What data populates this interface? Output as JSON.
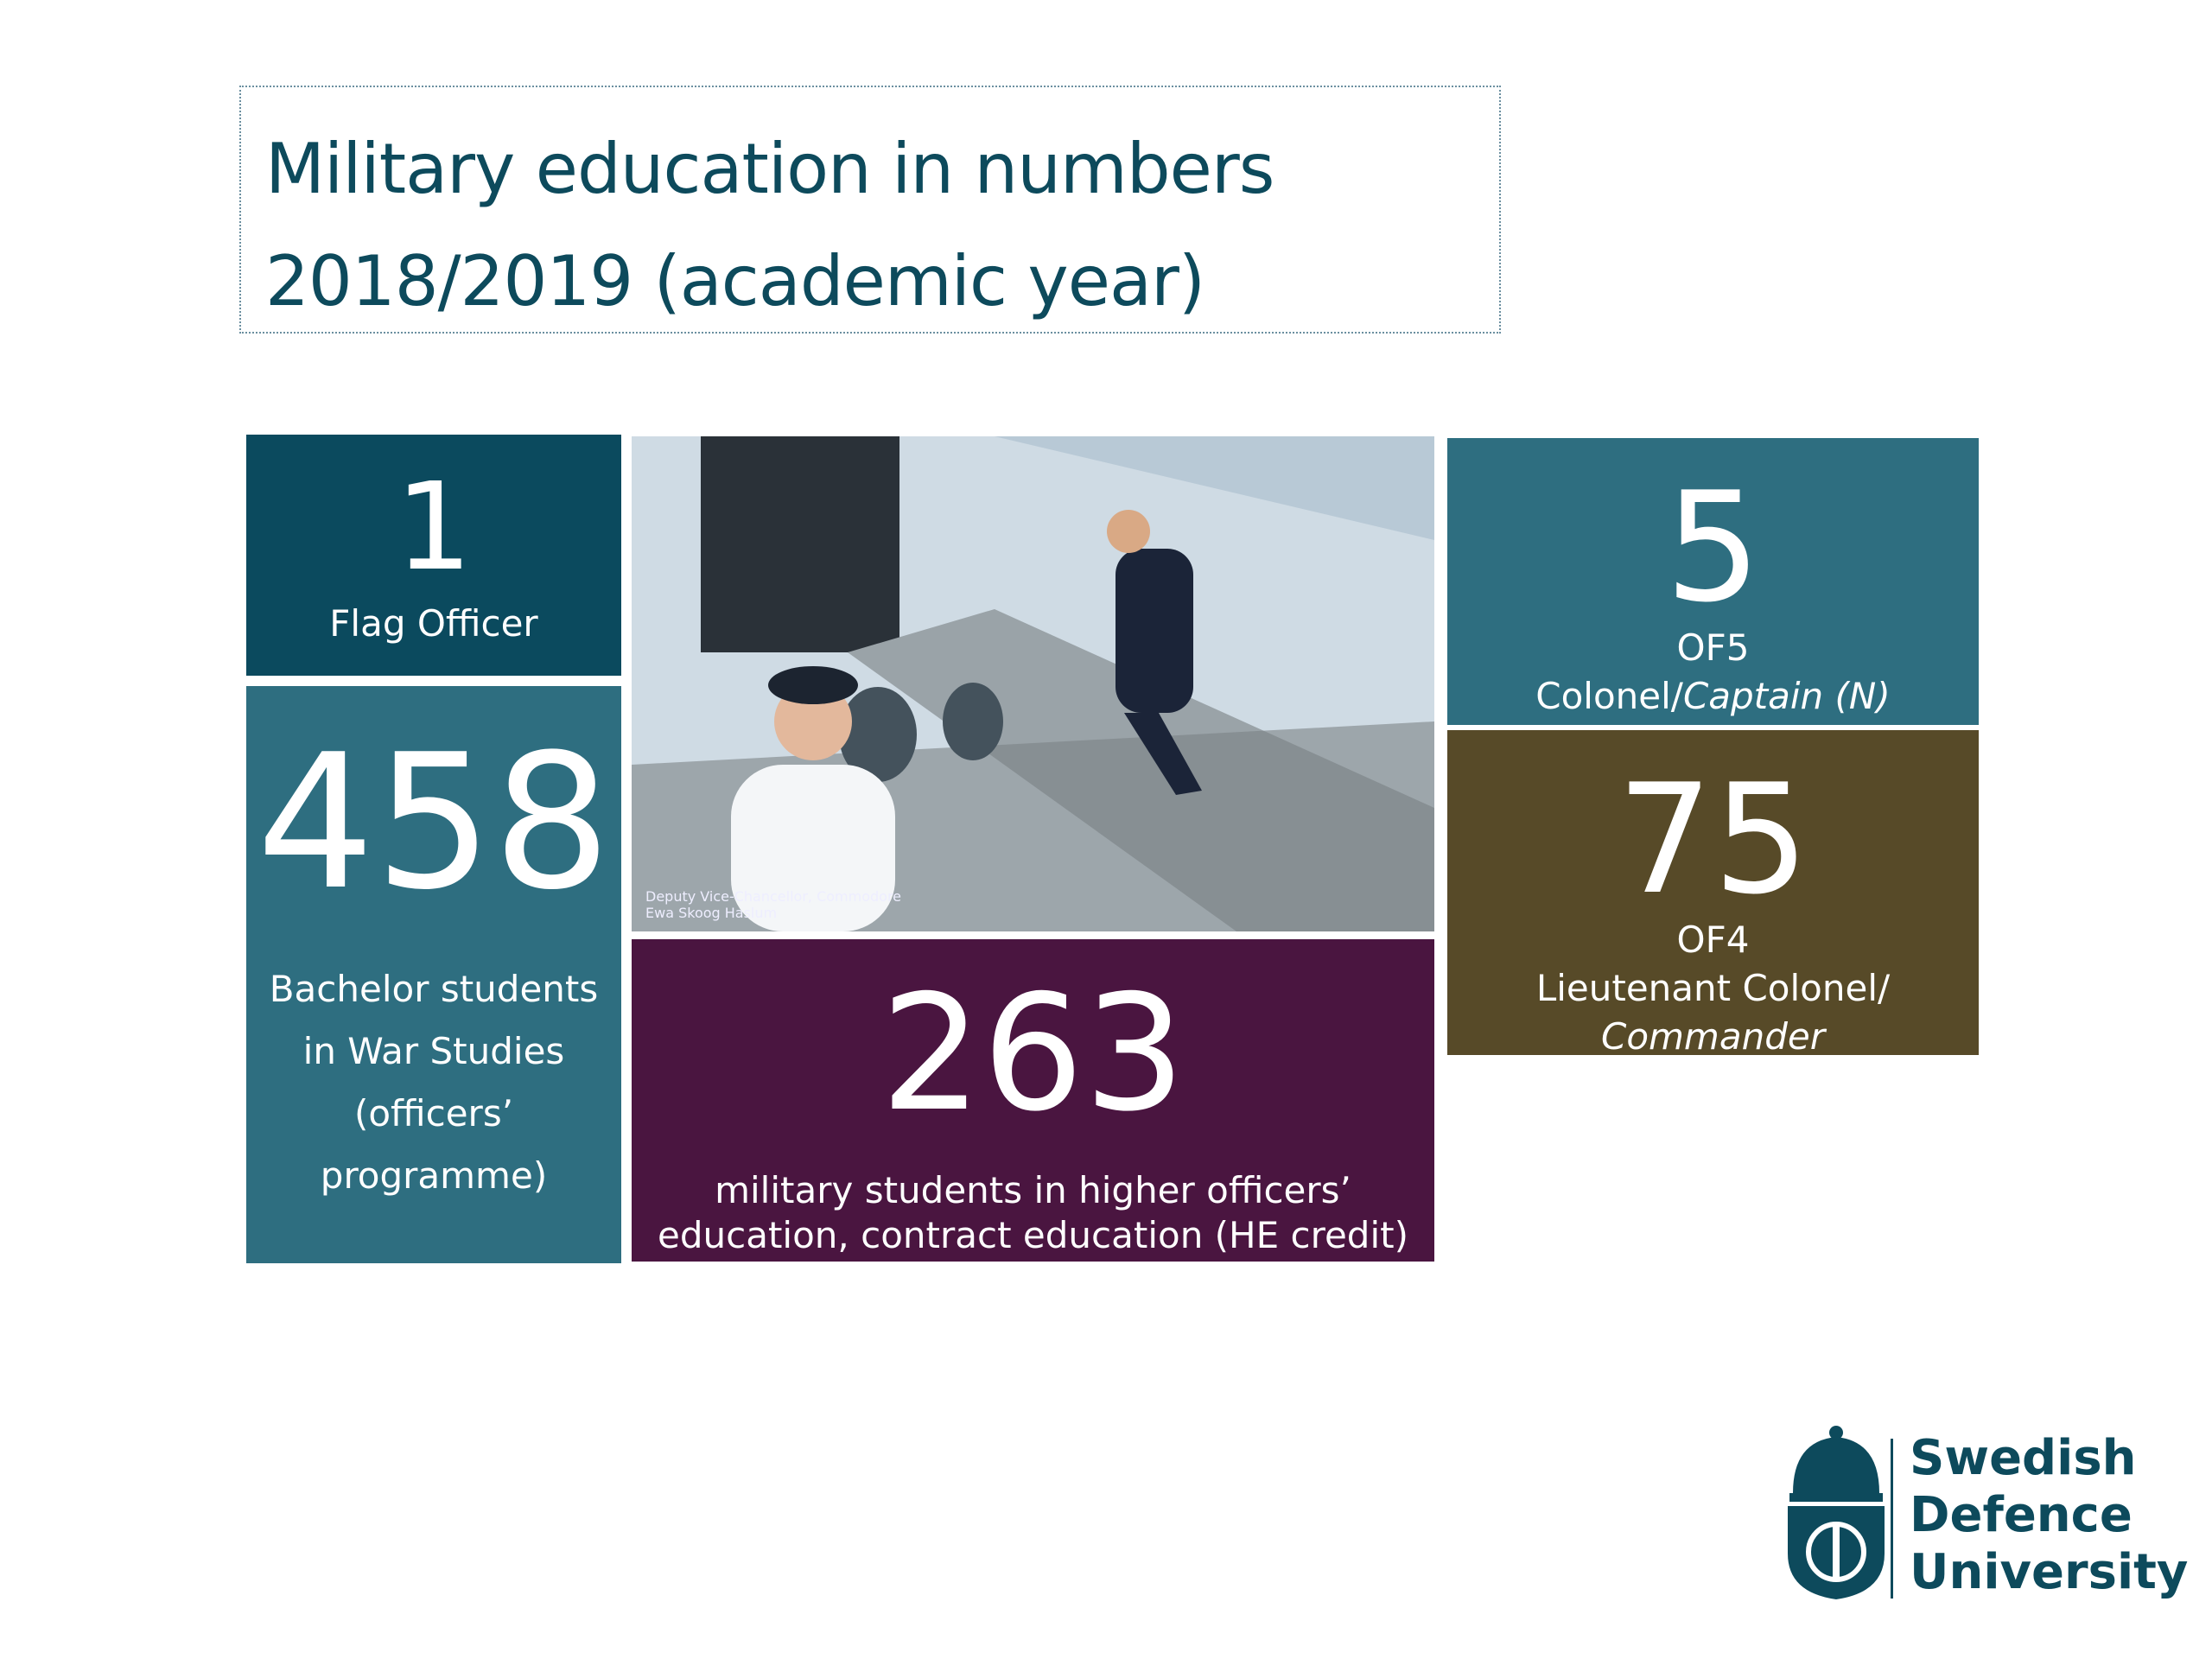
{
  "header": {
    "title_lines": [
      "Military education in numbers",
      "2018/2019 (academic year)"
    ]
  },
  "tiles": [
    {
      "value": 1,
      "lines": [
        "Flag Officer"
      ]
    },
    {
      "value": 458,
      "lines": [
        "Bachelor students",
        "in War Studies",
        "(officers’",
        "programme)"
      ]
    },
    {
      "value": 263,
      "lines": [
        "military students in higher officers’",
        "education, contract education (HE credit)"
      ]
    },
    {
      "value": 5,
      "rank": "OF5",
      "title": "Colonel/",
      "title_italic": "Captain (N)"
    },
    {
      "value": 75,
      "rank": "OF4",
      "title": "Lieutenant Colonel/",
      "title_italic": "Commander"
    }
  ],
  "photo": {
    "caption_lines": [
      "Deputy Vice-Chancellor, Commodore",
      "Ewa Skoog Haslum"
    ]
  },
  "logo": {
    "lines": [
      "Swedish",
      "Defence",
      "University"
    ]
  }
}
